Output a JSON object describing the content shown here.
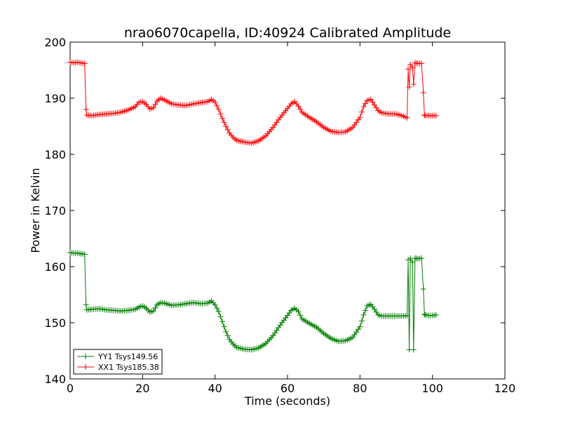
{
  "chart_data": {
    "type": "line",
    "title": "nrao6070capella, ID:40924 Calibrated Amplitude",
    "xlabel": "Time (seconds)",
    "ylabel": "Power in Kelvin",
    "xlim": [
      0,
      120
    ],
    "ylim": [
      140,
      200
    ],
    "xticks": [
      "0",
      "20",
      "40",
      "60",
      "80",
      "100",
      "120"
    ],
    "yticks": [
      "140",
      "150",
      "160",
      "170",
      "180",
      "190",
      "200"
    ],
    "grid": false,
    "legend_position": "lower-left",
    "marker": "plus",
    "series": [
      {
        "name": "YY1 Tsys149.56",
        "color": "#008000",
        "points": [
          [
            0,
            162.5
          ],
          [
            1,
            162.4
          ],
          [
            2,
            162.4
          ],
          [
            3,
            162.3
          ],
          [
            4,
            162.2
          ],
          [
            4.4,
            153.2
          ],
          [
            4.6,
            152.3
          ],
          [
            6,
            152.4
          ],
          [
            8,
            152.5
          ],
          [
            10,
            152.3
          ],
          [
            12,
            152.2
          ],
          [
            14,
            152.1
          ],
          [
            16,
            152.2
          ],
          [
            18,
            152.4
          ],
          [
            19,
            152.8
          ],
          [
            20,
            153.0
          ],
          [
            21,
            152.6
          ],
          [
            22,
            151.9
          ],
          [
            23,
            152.1
          ],
          [
            24,
            153.2
          ],
          [
            25,
            153.6
          ],
          [
            26,
            153.5
          ],
          [
            28,
            153.1
          ],
          [
            30,
            153.2
          ],
          [
            32,
            153.4
          ],
          [
            34,
            153.6
          ],
          [
            36,
            153.4
          ],
          [
            38,
            153.5
          ],
          [
            39,
            153.9
          ],
          [
            40,
            153.2
          ],
          [
            41,
            152.0
          ],
          [
            42,
            150.2
          ],
          [
            43,
            148.4
          ],
          [
            44,
            147.0
          ],
          [
            45,
            146.2
          ],
          [
            46,
            145.6
          ],
          [
            48,
            145.3
          ],
          [
            50,
            145.2
          ],
          [
            52,
            145.5
          ],
          [
            54,
            146.3
          ],
          [
            56,
            147.7
          ],
          [
            58,
            149.6
          ],
          [
            60,
            151.3
          ],
          [
            61,
            152.2
          ],
          [
            62,
            152.6
          ],
          [
            63,
            152.0
          ],
          [
            64,
            150.7
          ],
          [
            66,
            149.9
          ],
          [
            68,
            149.2
          ],
          [
            70,
            148.1
          ],
          [
            72,
            147.2
          ],
          [
            74,
            146.7
          ],
          [
            76,
            146.8
          ],
          [
            78,
            147.4
          ],
          [
            80,
            149.3
          ],
          [
            81,
            151.4
          ],
          [
            82,
            153.0
          ],
          [
            83,
            153.3
          ],
          [
            84,
            152.4
          ],
          [
            85,
            151.4
          ],
          [
            86,
            151.2
          ],
          [
            88,
            151.2
          ],
          [
            90,
            151.2
          ],
          [
            92,
            151.2
          ],
          [
            93,
            151.3
          ],
          [
            93.3,
            161.2
          ],
          [
            93.6,
            145.2
          ],
          [
            93.9,
            161.5
          ],
          [
            94.5,
            160.8
          ],
          [
            94.8,
            145.2
          ],
          [
            95.2,
            161.5
          ],
          [
            96,
            161.4
          ],
          [
            97,
            161.5
          ],
          [
            97.5,
            156.0
          ],
          [
            97.8,
            151.5
          ],
          [
            98,
            151.4
          ],
          [
            99,
            151.3
          ],
          [
            100,
            151.3
          ],
          [
            101,
            151.4
          ]
        ]
      },
      {
        "name": "XX1 Tsys185.38",
        "color": "#ff0000",
        "points": [
          [
            0,
            196.4
          ],
          [
            1,
            196.3
          ],
          [
            2,
            196.4
          ],
          [
            3,
            196.3
          ],
          [
            4,
            196.2
          ],
          [
            4.4,
            188.0
          ],
          [
            4.6,
            187.0
          ],
          [
            6,
            186.9
          ],
          [
            8,
            187.1
          ],
          [
            10,
            187.2
          ],
          [
            12,
            187.3
          ],
          [
            14,
            187.5
          ],
          [
            16,
            187.9
          ],
          [
            18,
            188.5
          ],
          [
            19,
            189.3
          ],
          [
            20,
            189.4
          ],
          [
            21,
            188.9
          ],
          [
            22,
            188.1
          ],
          [
            23,
            188.3
          ],
          [
            24,
            189.5
          ],
          [
            25,
            190.0
          ],
          [
            26,
            189.7
          ],
          [
            28,
            189.0
          ],
          [
            30,
            188.8
          ],
          [
            32,
            188.7
          ],
          [
            34,
            189.0
          ],
          [
            36,
            189.2
          ],
          [
            38,
            189.4
          ],
          [
            39,
            189.8
          ],
          [
            40,
            189.3
          ],
          [
            41,
            188.0
          ],
          [
            42,
            186.4
          ],
          [
            43,
            185.0
          ],
          [
            44,
            183.8
          ],
          [
            45,
            183.0
          ],
          [
            46,
            182.5
          ],
          [
            48,
            182.2
          ],
          [
            50,
            182.0
          ],
          [
            52,
            182.4
          ],
          [
            54,
            183.3
          ],
          [
            56,
            184.8
          ],
          [
            58,
            186.6
          ],
          [
            60,
            188.2
          ],
          [
            61,
            189.0
          ],
          [
            62,
            189.4
          ],
          [
            63,
            188.6
          ],
          [
            64,
            187.5
          ],
          [
            66,
            186.6
          ],
          [
            68,
            185.8
          ],
          [
            70,
            184.8
          ],
          [
            72,
            184.1
          ],
          [
            74,
            183.9
          ],
          [
            76,
            184.0
          ],
          [
            78,
            184.8
          ],
          [
            80,
            186.6
          ],
          [
            81,
            188.5
          ],
          [
            82,
            189.6
          ],
          [
            83,
            189.8
          ],
          [
            84,
            188.8
          ],
          [
            85,
            187.8
          ],
          [
            86,
            187.4
          ],
          [
            88,
            187.2
          ],
          [
            90,
            187.2
          ],
          [
            92,
            186.8
          ],
          [
            93,
            186.5
          ],
          [
            93.3,
            195.2
          ],
          [
            93.6,
            192.0
          ],
          [
            93.9,
            196.0
          ],
          [
            94.5,
            195.5
          ],
          [
            94.8,
            192.5
          ],
          [
            95.2,
            196.3
          ],
          [
            96,
            196.2
          ],
          [
            97,
            196.2
          ],
          [
            97.5,
            191.0
          ],
          [
            97.8,
            187.0
          ],
          [
            98,
            186.9
          ],
          [
            99,
            186.9
          ],
          [
            100,
            186.9
          ],
          [
            101,
            186.9
          ]
        ]
      }
    ]
  }
}
